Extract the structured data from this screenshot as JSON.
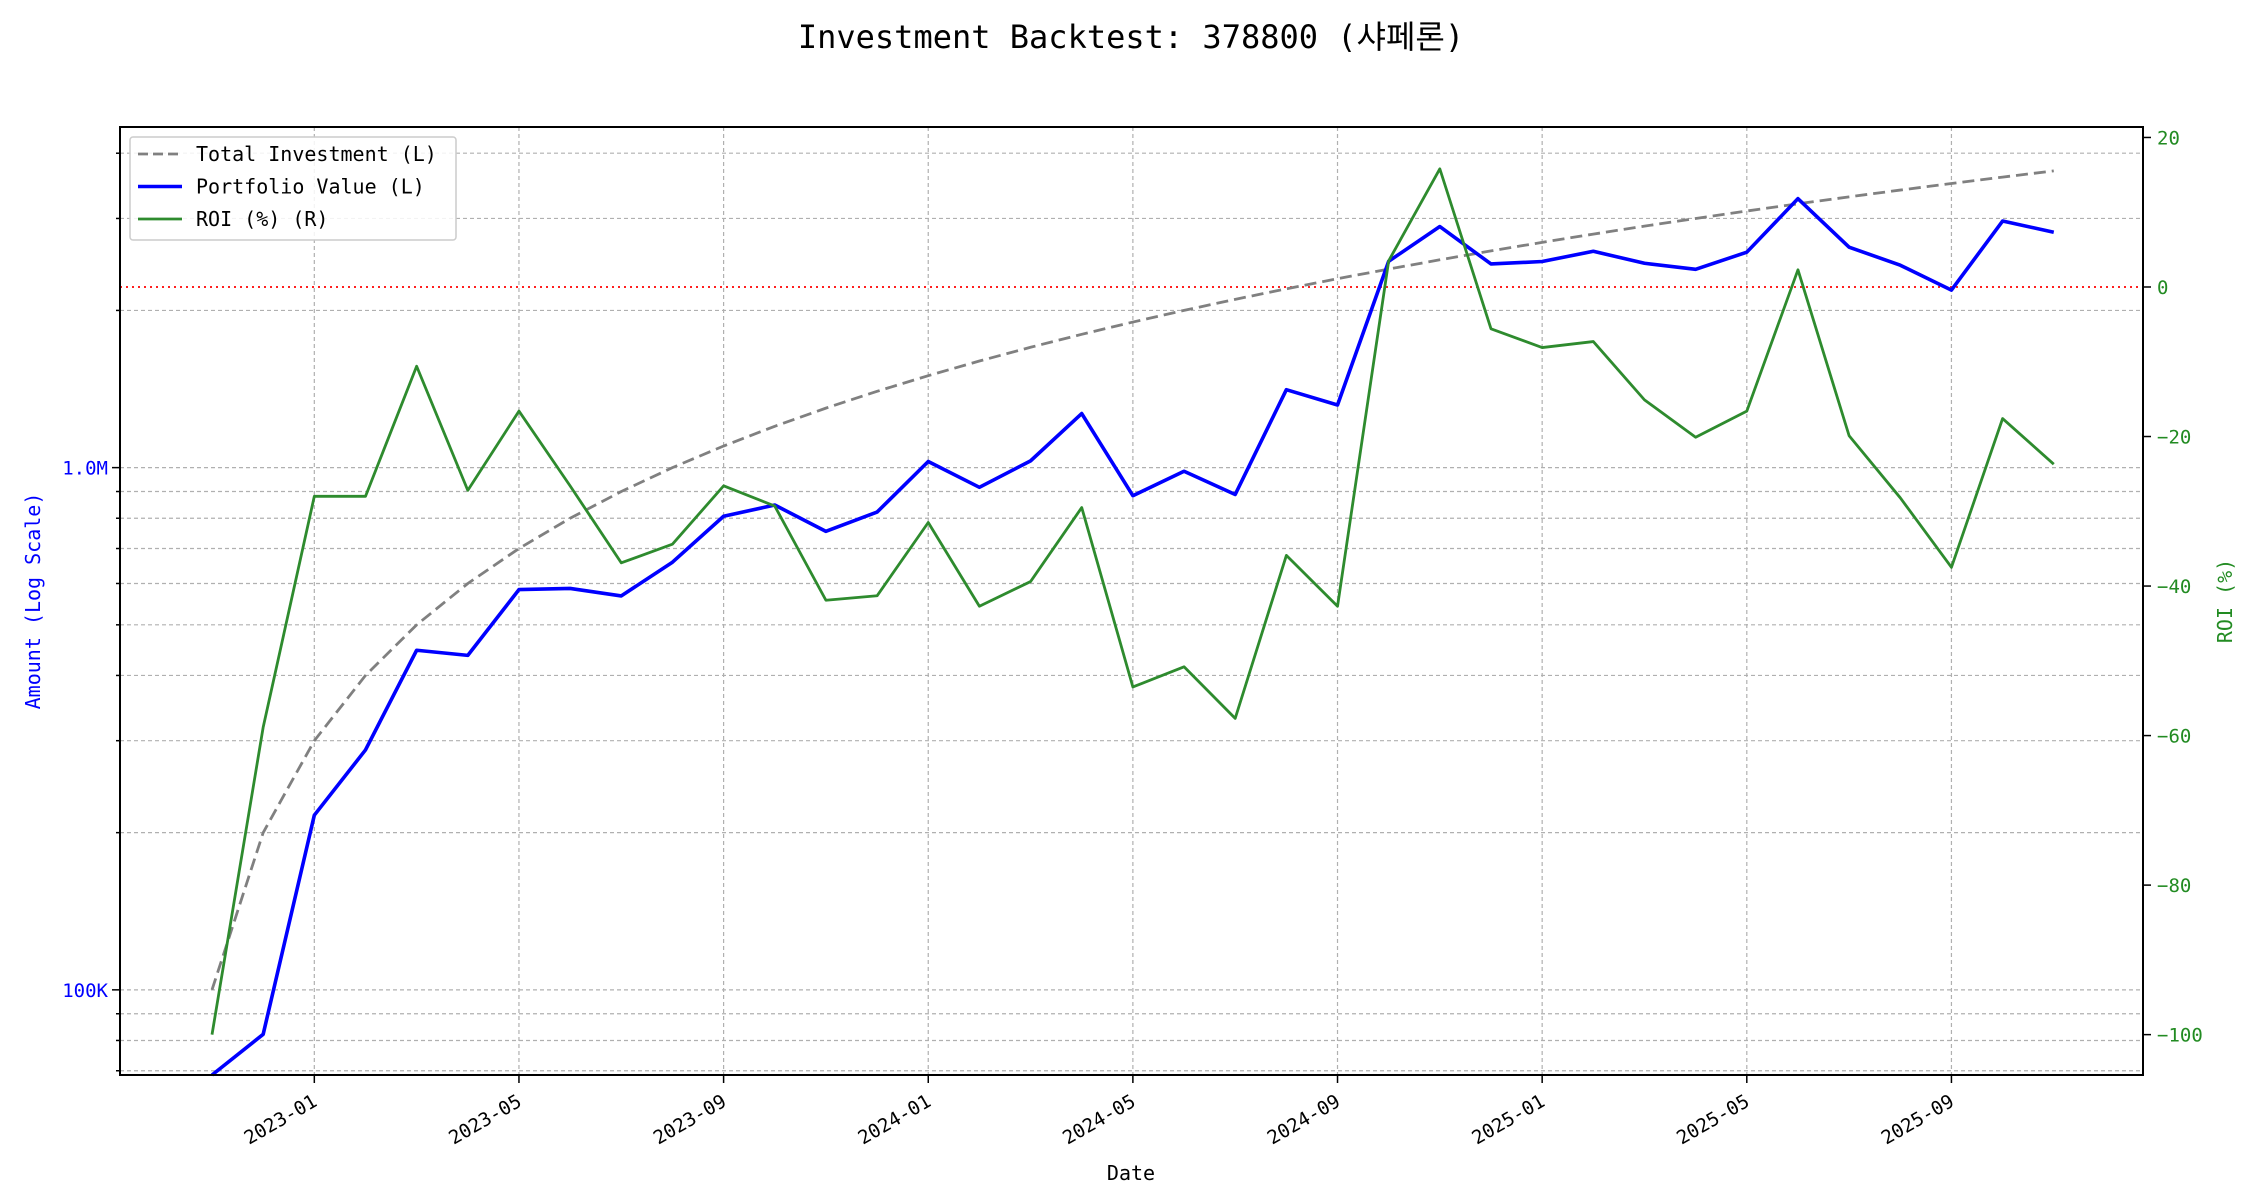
{
  "chart_data": {
    "type": "line",
    "title": "Investment Backtest: 378800 (샤페론)",
    "xlabel": "Date",
    "ylabel_left": "Amount (Log Scale)",
    "ylabel_right": "ROI (%)",
    "x_ticks": [
      "2023-01",
      "2023-05",
      "2023-09",
      "2024-01",
      "2024-05",
      "2024-09",
      "2025-01",
      "2025-05",
      "2025-09"
    ],
    "x": [
      "2022-11",
      "2022-12",
      "2023-01",
      "2023-02",
      "2023-03",
      "2023-04",
      "2023-05",
      "2023-06",
      "2023-07",
      "2023-08",
      "2023-09",
      "2023-10",
      "2023-11",
      "2023-12",
      "2024-01",
      "2024-02",
      "2024-03",
      "2024-04",
      "2024-05",
      "2024-06",
      "2024-07",
      "2024-08",
      "2024-09",
      "2024-10",
      "2024-11",
      "2024-12",
      "2025-01",
      "2025-02",
      "2025-03",
      "2025-04",
      "2025-05",
      "2025-06",
      "2025-07",
      "2025-08",
      "2025-09",
      "2025-10",
      "2025-11"
    ],
    "left_axis": {
      "scale": "log",
      "ylim": [
        68700,
        4490000
      ],
      "tick_values": [
        100000,
        1000000
      ],
      "tick_labels": [
        "100K",
        "1.0M"
      ],
      "color": "#0000ff"
    },
    "right_axis": {
      "ylim": [
        -105.4,
        21.4
      ],
      "tick_values": [
        20,
        0,
        -20,
        -40,
        -60,
        -80,
        -100
      ],
      "tick_labels": [
        "20",
        "0",
        "−20",
        "−40",
        "−60",
        "−80",
        "−100"
      ],
      "color": "#228b22"
    },
    "series": [
      {
        "name": "Total Investment (L)",
        "axis": "left",
        "color": "#808080",
        "style": "dashed",
        "values": [
          100000,
          200000,
          300000,
          400000,
          500000,
          600000,
          700000,
          800000,
          900000,
          1000000,
          1100000,
          1200000,
          1300000,
          1400000,
          1500000,
          1600000,
          1700000,
          1800000,
          1900000,
          2000000,
          2100000,
          2200000,
          2300000,
          2400000,
          2500000,
          2600000,
          2700000,
          2800000,
          2900000,
          3000000,
          3100000,
          3200000,
          3300000,
          3400000,
          3500000,
          3600000,
          3700000
        ]
      },
      {
        "name": "Portfolio Value (L)",
        "axis": "left",
        "color": "#0000ff",
        "style": "solid",
        "values": [
          0,
          82200,
          216000,
          288000,
          447000,
          437000,
          584000,
          587000,
          568000,
          659000,
          807000,
          848000,
          755000,
          822000,
          1027500,
          916800,
          1030200,
          1269000,
          883500,
          984000,
          888300,
          1410200,
          1317900,
          2484000,
          2895000,
          2454400,
          2481300,
          2595600,
          2462100,
          2397000,
          2585400,
          3273600,
          2643300,
          2441200,
          2187500,
          2966400,
          2823100
        ]
      },
      {
        "name": "ROI (%) (R)",
        "axis": "right",
        "color": "#2e8b2e",
        "style": "solid",
        "values": [
          -100,
          -58.9,
          -28,
          -28,
          -10.6,
          -27.2,
          -16.6,
          -26.6,
          -36.9,
          -34.4,
          -26.6,
          -29.3,
          -41.9,
          -41.3,
          -31.5,
          -42.7,
          -39.4,
          -29.5,
          -53.5,
          -50.8,
          -57.7,
          -35.9,
          -42.7,
          3.5,
          15.8,
          -5.6,
          -8.1,
          -7.3,
          -15.1,
          -20.1,
          -16.6,
          2.3,
          -19.9,
          -28.2,
          -37.5,
          -17.6,
          -23.7
        ]
      }
    ],
    "reference_line": {
      "axis": "right",
      "value": 0,
      "color": "#ff0000",
      "style": "dotted"
    },
    "grid": true,
    "legend_position": "upper-left"
  }
}
